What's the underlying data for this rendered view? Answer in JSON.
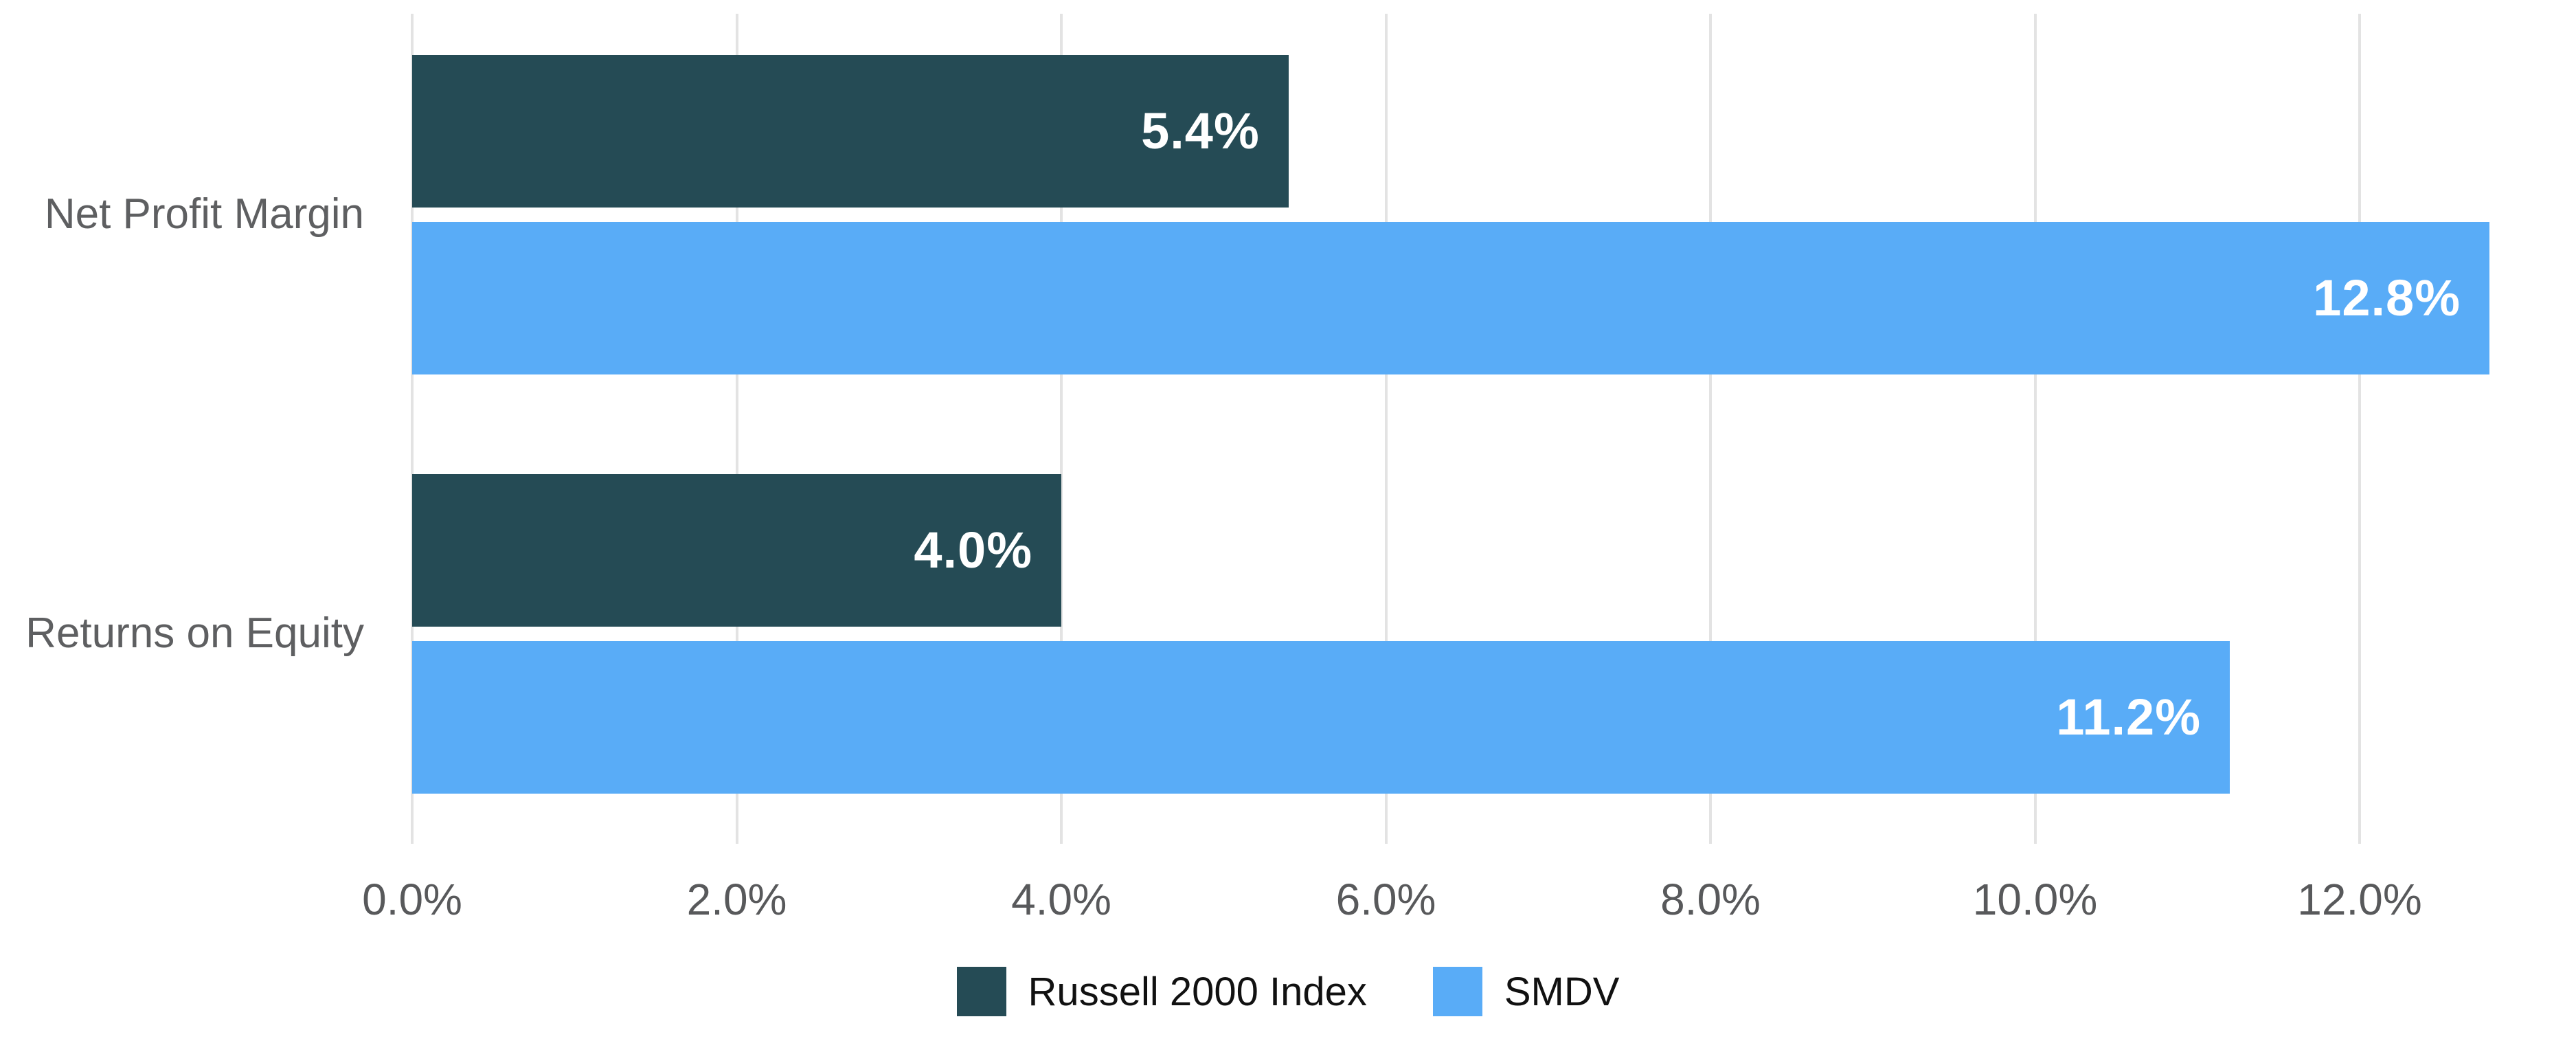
{
  "chart_data": {
    "type": "bar",
    "orientation": "horizontal",
    "title": "",
    "xlabel": "",
    "ylabel": "",
    "categories": [
      "Net Profit Margin",
      "Returns on Equity"
    ],
    "series": [
      {
        "name": "Russell 2000 Index",
        "color": "#254b55",
        "values": [
          5.4,
          4.0
        ],
        "labels": [
          "5.4%",
          "4.0%"
        ]
      },
      {
        "name": "SMDV",
        "color": "#59acf7",
        "values": [
          12.8,
          11.2
        ],
        "labels": [
          "12.8%",
          "11.2%"
        ]
      }
    ],
    "xlim": [
      0,
      12.8
    ],
    "x_ticks": [
      {
        "value": 0,
        "label": "0.0%"
      },
      {
        "value": 2,
        "label": "2.0%"
      },
      {
        "value": 4,
        "label": "4.0%"
      },
      {
        "value": 6,
        "label": "6.0%"
      },
      {
        "value": 8,
        "label": "8.0%"
      },
      {
        "value": 10,
        "label": "10.0%"
      },
      {
        "value": 12,
        "label": "12.0%"
      }
    ],
    "grid": "vertical-only",
    "legend_position": "bottom-center",
    "value_labels": "inside-end-white-bold",
    "background_color": "#ffffff",
    "gridline_color": "#e3e3e3",
    "axis_text_color": "#58595b",
    "category_text_color": "#5e5f61",
    "legend_text_color": "#111111"
  }
}
